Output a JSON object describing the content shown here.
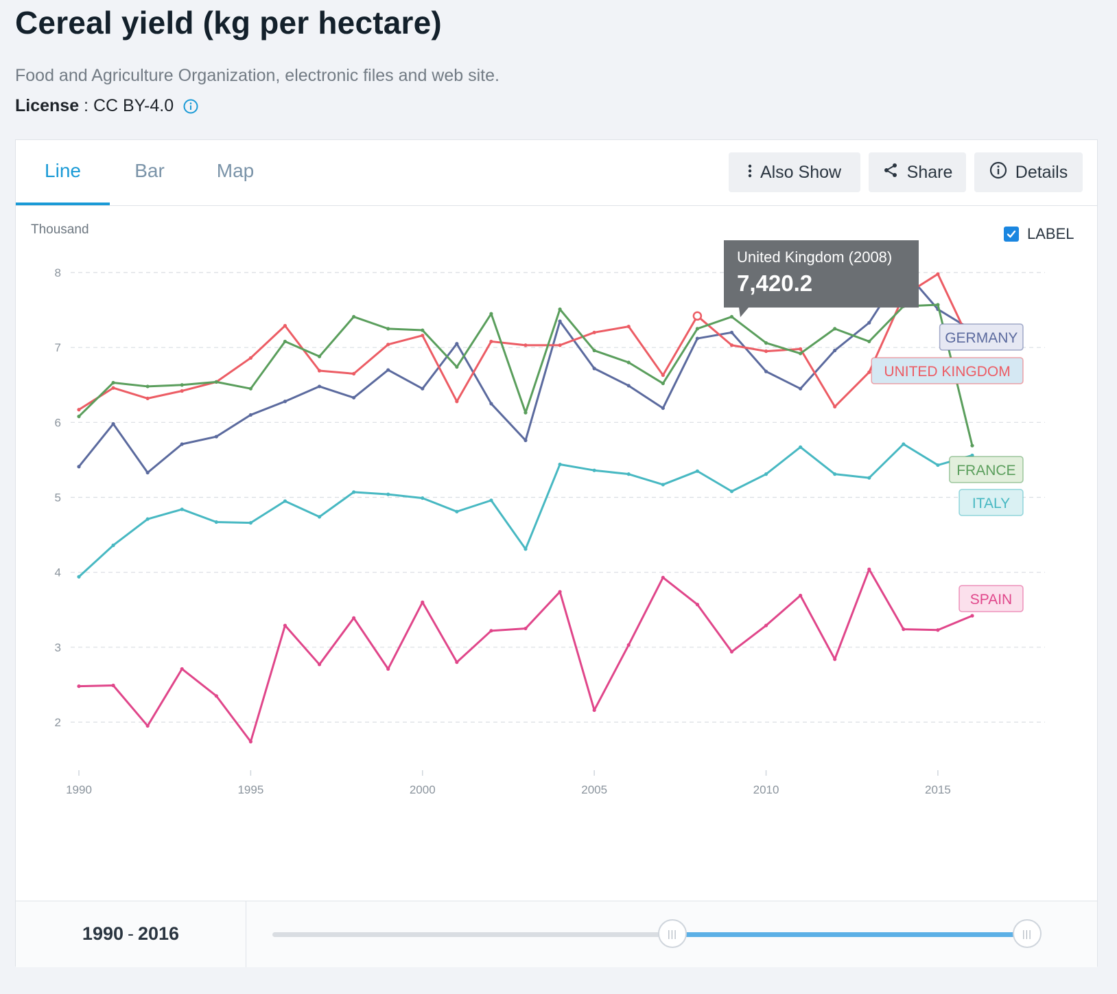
{
  "header": {
    "title": "Cereal yield (kg per hectare)",
    "source": "Food and Agriculture Organization, electronic files and web site.",
    "license_label": "License",
    "license_value": "CC BY-4.0"
  },
  "tabs": [
    {
      "label": "Line",
      "active": true
    },
    {
      "label": "Bar",
      "active": false
    },
    {
      "label": "Map",
      "active": false
    }
  ],
  "toolbar": {
    "also_show": "Also Show",
    "share": "Share",
    "details": "Details"
  },
  "chart_controls": {
    "unit_label": "Thousand",
    "label_toggle": "LABEL",
    "label_checked": true
  },
  "tooltip": {
    "title": "United Kingdom (2008)",
    "value": "7,420.2",
    "series": "United Kingdom",
    "x": 2008,
    "y": 7.4202
  },
  "range": {
    "start": "1990",
    "sep": "-",
    "end": "2016",
    "handle_left_fraction": 0.53,
    "handle_right_fraction": 1.0
  },
  "chart_data": {
    "type": "line",
    "title": "Cereal yield (kg per hectare)",
    "ylabel": "Thousand",
    "xlim": [
      1990,
      2016
    ],
    "ylim": [
      1.5,
      8.5
    ],
    "x_ticks": [
      1990,
      1995,
      2000,
      2005,
      2010,
      2015
    ],
    "y_ticks": [
      2,
      3,
      4,
      5,
      6,
      7,
      8
    ],
    "grid": true,
    "x": [
      1990,
      1991,
      1992,
      1993,
      1994,
      1995,
      1996,
      1997,
      1998,
      1999,
      2000,
      2001,
      2002,
      2003,
      2004,
      2005,
      2006,
      2007,
      2008,
      2009,
      2010,
      2011,
      2012,
      2013,
      2014,
      2015,
      2016
    ],
    "series": [
      {
        "name": "GERMANY",
        "color": "#5b6a9e",
        "label_bg": "#e6e8f3",
        "values": [
          5.41,
          5.98,
          5.33,
          5.71,
          5.81,
          6.1,
          6.28,
          6.48,
          6.33,
          6.7,
          6.45,
          7.05,
          6.25,
          5.76,
          7.35,
          6.72,
          6.49,
          6.19,
          7.12,
          7.2,
          6.68,
          6.45,
          6.96,
          7.33,
          8.04,
          7.51,
          7.23
        ]
      },
      {
        "name": "UNITED KINGDOM",
        "color": "#ec5c64",
        "label_bg": "#d5e8f3",
        "values": [
          6.17,
          6.46,
          6.32,
          6.42,
          6.54,
          6.86,
          7.29,
          6.69,
          6.65,
          7.04,
          7.16,
          6.28,
          7.08,
          7.03,
          7.03,
          7.2,
          7.28,
          6.63,
          7.42,
          7.03,
          6.95,
          6.98,
          6.21,
          6.67,
          7.69,
          7.98,
          7.01
        ]
      },
      {
        "name": "FRANCE",
        "color": "#5a9e5c",
        "label_bg": "#e2efdc",
        "values": [
          6.08,
          6.53,
          6.48,
          6.5,
          6.54,
          6.45,
          7.08,
          6.88,
          7.41,
          7.25,
          7.23,
          6.74,
          7.45,
          6.13,
          7.51,
          6.96,
          6.8,
          6.52,
          7.25,
          7.41,
          7.06,
          6.92,
          7.25,
          7.08,
          7.55,
          7.57,
          5.69
        ]
      },
      {
        "name": "ITALY",
        "color": "#47b8c2",
        "label_bg": "#daf1f3",
        "values": [
          3.94,
          4.36,
          4.71,
          4.84,
          4.67,
          4.66,
          4.95,
          4.74,
          5.07,
          5.04,
          4.99,
          4.81,
          4.96,
          4.31,
          5.44,
          5.36,
          5.31,
          5.17,
          5.35,
          5.08,
          5.31,
          5.67,
          5.31,
          5.26,
          5.71,
          5.43,
          5.56
        ]
      },
      {
        "name": "SPAIN",
        "color": "#e0468a",
        "label_bg": "#fbe0ec",
        "values": [
          2.48,
          2.49,
          1.95,
          2.71,
          2.35,
          1.74,
          3.29,
          2.77,
          3.39,
          2.71,
          3.6,
          2.8,
          3.22,
          3.25,
          3.74,
          2.16,
          3.03,
          3.93,
          3.57,
          2.94,
          3.29,
          3.69,
          2.84,
          4.04,
          3.24,
          3.23,
          3.42
        ]
      }
    ]
  }
}
